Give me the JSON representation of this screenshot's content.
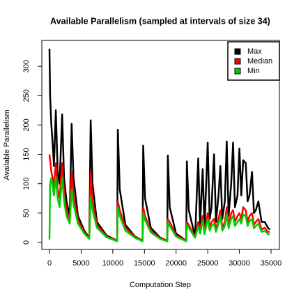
{
  "chart_data": {
    "type": "line",
    "title": "Available Parallelism (sampled at intervals of size 34)",
    "x_label": "Computation Step",
    "y_label": "Available Parallelism",
    "x": [
      0,
      100,
      300,
      500,
      700,
      1000,
      1300,
      1600,
      2000,
      2300,
      2700,
      3200,
      3500,
      3800,
      4500,
      5500,
      6300,
      6500,
      6800,
      7500,
      9000,
      10700,
      10800,
      11100,
      12000,
      13500,
      14700,
      14800,
      15100,
      16000,
      17500,
      18600,
      18700,
      19000,
      20000,
      21600,
      21700,
      22000,
      23000,
      23500,
      23800,
      24200,
      24500,
      25000,
      25300,
      25600,
      26000,
      26300,
      26700,
      27000,
      27300,
      27700,
      28000,
      28300,
      28700,
      29000,
      29300,
      29700,
      30000,
      30300,
      30600,
      31000,
      31300,
      31600,
      32000,
      32300,
      32600,
      33000,
      33500,
      34000,
      34500,
      34800
    ],
    "series": [
      {
        "name": "Max",
        "color": "#000000",
        "values": [
          330,
          250,
          200,
          170,
          130,
          225,
          120,
          100,
          218,
          110,
          70,
          45,
          202,
          110,
          45,
          20,
          8,
          208,
          100,
          35,
          12,
          3,
          192,
          90,
          30,
          10,
          3,
          165,
          75,
          25,
          8,
          3,
          148,
          60,
          15,
          3,
          138,
          55,
          10,
          143,
          30,
          125,
          25,
          170,
          40,
          60,
          150,
          35,
          80,
          130,
          40,
          70,
          172,
          45,
          100,
          170,
          60,
          80,
          160,
          80,
          140,
          135,
          70,
          80,
          120,
          50,
          55,
          70,
          35,
          35,
          25,
          22
        ]
      },
      {
        "name": "Median",
        "color": "#ff0000",
        "values": [
          150,
          140,
          120,
          110,
          95,
          135,
          90,
          75,
          135,
          85,
          55,
          38,
          120,
          80,
          38,
          17,
          7,
          120,
          70,
          30,
          10,
          3,
          70,
          55,
          25,
          9,
          3,
          60,
          45,
          20,
          7,
          3,
          40,
          35,
          12,
          3,
          35,
          30,
          9,
          35,
          20,
          45,
          18,
          50,
          25,
          35,
          40,
          22,
          40,
          55,
          25,
          35,
          60,
          30,
          50,
          55,
          35,
          45,
          50,
          40,
          60,
          55,
          35,
          45,
          50,
          30,
          35,
          40,
          22,
          25,
          18,
          18
        ]
      },
      {
        "name": "Min",
        "color": "#00cc00",
        "values": [
          5,
          100,
          110,
          95,
          80,
          110,
          75,
          60,
          110,
          70,
          45,
          32,
          90,
          65,
          32,
          15,
          6,
          75,
          55,
          25,
          9,
          2,
          60,
          45,
          20,
          8,
          2,
          50,
          38,
          17,
          6,
          2,
          35,
          28,
          10,
          2,
          30,
          25,
          8,
          28,
          15,
          38,
          14,
          40,
          20,
          28,
          32,
          18,
          32,
          45,
          20,
          28,
          48,
          24,
          40,
          45,
          28,
          35,
          40,
          32,
          48,
          45,
          28,
          36,
          40,
          24,
          28,
          32,
          18,
          20,
          14,
          14
        ]
      }
    ],
    "xlim": [
      -1211,
      36320
    ],
    "ylim": [
      -11.9,
      344
    ],
    "xticks": [
      0,
      5000,
      10000,
      15000,
      20000,
      25000,
      30000,
      35000
    ],
    "yticks": [
      0,
      50,
      100,
      150,
      200,
      250,
      300
    ],
    "legend": "top-right"
  }
}
